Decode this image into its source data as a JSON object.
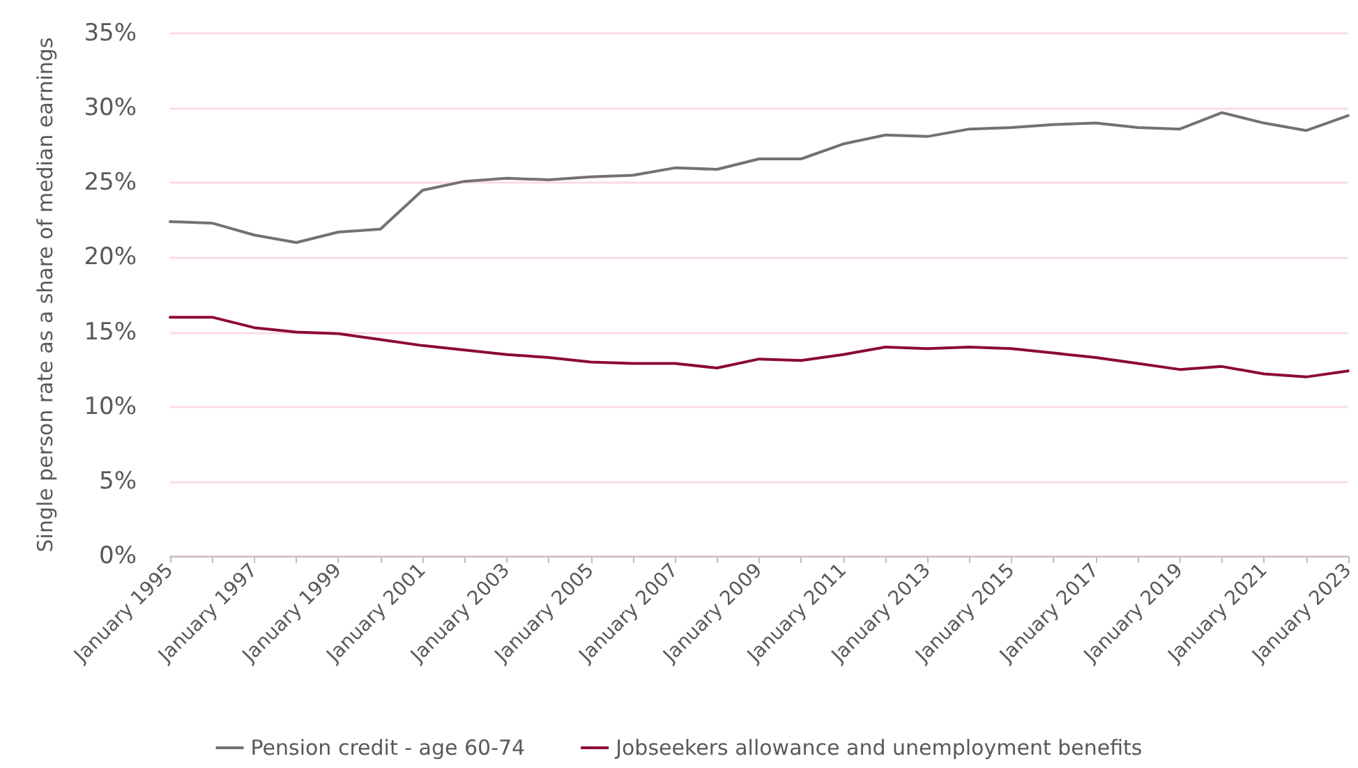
{
  "chart_data": {
    "type": "line",
    "ylabel": "Single person rate as a share of median earnings",
    "categories": [
      "January 1995",
      null,
      "January 1997",
      null,
      "January 1999",
      null,
      "January 2001",
      null,
      "January 2003",
      null,
      "January 2005",
      null,
      "January 2007",
      null,
      "January 2009",
      null,
      "January 2011",
      null,
      "January 2013",
      null,
      "January 2015",
      null,
      "January 2017",
      null,
      "January 2019",
      null,
      "January 2021",
      null,
      "January 2023"
    ],
    "series": [
      {
        "name": "Pension credit - age 60-74",
        "color": "#767171",
        "values": [
          22.4,
          22.3,
          21.5,
          21.0,
          21.7,
          21.9,
          24.5,
          25.1,
          25.3,
          25.2,
          25.4,
          25.5,
          26.0,
          25.9,
          26.6,
          26.6,
          27.6,
          28.2,
          28.1,
          28.6,
          28.7,
          28.9,
          29.0,
          28.7,
          28.6,
          29.7,
          29.0,
          28.5,
          29.5
        ]
      },
      {
        "name": "Jobseekers allowance and unemployment benefits",
        "color": "#8b0a34",
        "values": [
          16.0,
          16.0,
          15.3,
          15.0,
          14.9,
          14.5,
          14.1,
          13.8,
          13.5,
          13.3,
          13.0,
          12.9,
          12.9,
          12.6,
          13.2,
          13.1,
          13.5,
          14.0,
          13.9,
          14.0,
          13.9,
          13.6,
          13.3,
          12.9,
          12.5,
          12.7,
          12.2,
          12.0,
          12.4
        ]
      }
    ],
    "ylim": [
      0,
      35
    ],
    "yticks": [
      {
        "value": 0,
        "label": "0%"
      },
      {
        "value": 5,
        "label": "5%"
      },
      {
        "value": 10,
        "label": "10%"
      },
      {
        "value": 15,
        "label": "15%"
      },
      {
        "value": 20,
        "label": "20%"
      },
      {
        "value": 25,
        "label": "25%"
      },
      {
        "value": 30,
        "label": "30%"
      },
      {
        "value": 35,
        "label": "35%"
      }
    ],
    "grid": "y",
    "legend": "bottom",
    "marker": "none",
    "line_style": "solid"
  }
}
